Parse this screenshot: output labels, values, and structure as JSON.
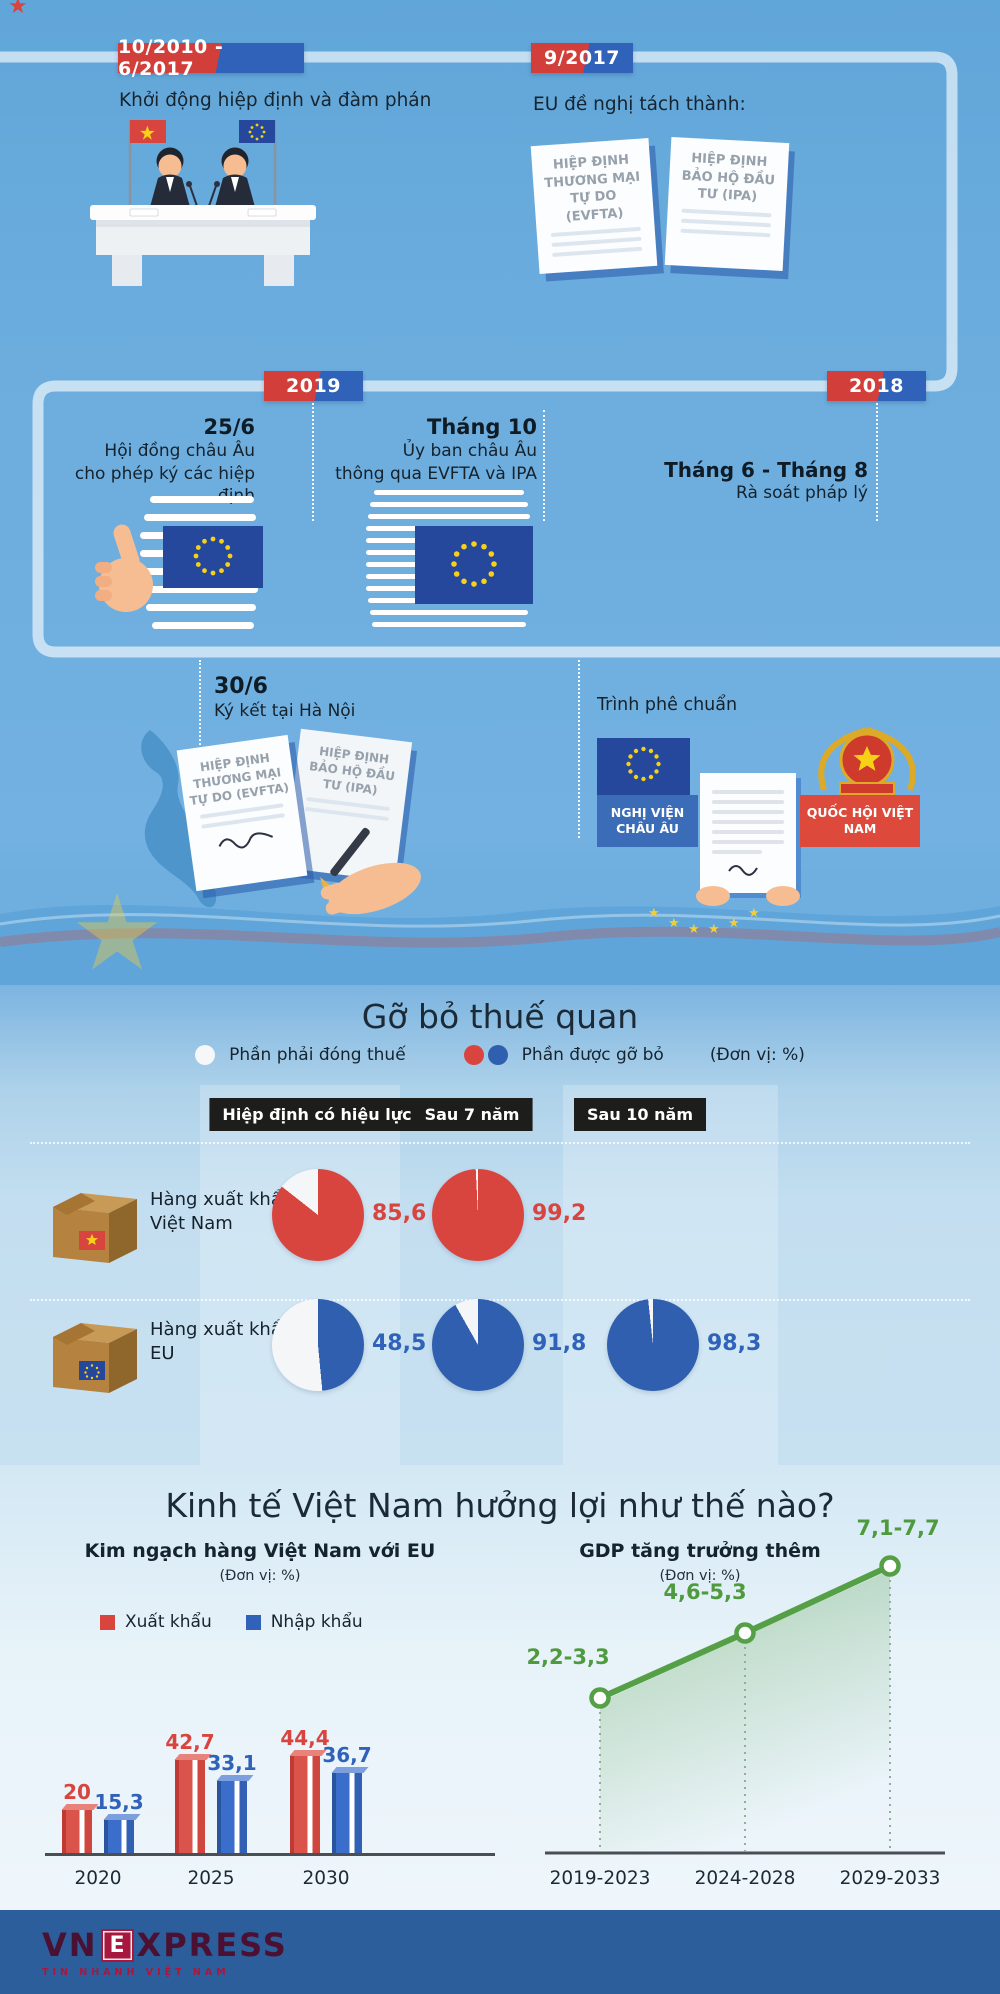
{
  "colors": {
    "red": "#d8453e",
    "blue": "#2f62b8",
    "eu_navy": "#26489c",
    "star_yellow": "#f7d117",
    "green": "#55a046",
    "label_box": "#1d1d1b",
    "footer_bg": "#2c5e9c",
    "logo_maroon": "#4b1133",
    "logo_crimson": "#a8173e"
  },
  "timeline": {
    "period1": {
      "badge": "10/2010 - 6/2017",
      "text": "Khởi động hiệp định và đàm phán"
    },
    "period2": {
      "badge": "9/2017",
      "text": "EU đề nghị tách thành:",
      "doc1": "HIỆP ĐỊNH THƯƠNG MẠI TỰ DO (EVFTA)",
      "doc2": "HIỆP ĐỊNH BẢO HỘ ĐẦU TƯ (IPA)"
    },
    "badge2019": "2019",
    "badge2018": "2018",
    "event_25_6": {
      "date": "25/6",
      "line1": "Hội đồng châu Âu",
      "line2": "cho phép ký các hiệp định"
    },
    "event_thang10": {
      "date": "Tháng 10",
      "line1": "Ủy ban châu Âu",
      "line2": "thông qua EVFTA và IPA"
    },
    "event_thang6_8": {
      "date": "Tháng 6 - Tháng 8",
      "line1": "Rà soát pháp lý"
    },
    "event_30_6": {
      "date": "30/6",
      "line1": "Ký kết tại Hà Nội"
    },
    "event_ratify": {
      "title": "Trình phê chuẩn",
      "eu_label": "NGHỊ VIỆN CHÂU ÂU",
      "vn_label": "QUỐC HỘI VIỆT NAM"
    }
  },
  "tariff": {
    "title": "Gỡ bỏ thuế quan",
    "legend": {
      "white": "Phần phải đóng thuế",
      "colored": "Phần được gỡ bỏ",
      "unit": "(Đơn vị: %)"
    },
    "columns": [
      "Hiệp định có hiệu lực",
      "Sau 7 năm",
      "Sau 10 năm"
    ],
    "rows": [
      {
        "label_line1": "Hàng xuất khẩu",
        "label_line2": "Việt Nam",
        "values": [
          "85,6",
          "99,2",
          ""
        ]
      },
      {
        "label_line1": "Hàng xuất khẩu",
        "label_line2": "EU",
        "values": [
          "48,5",
          "91,8",
          "98,3"
        ]
      }
    ]
  },
  "economy": {
    "title": "Kinh tế Việt Nam hưởng lợi như thế nào?",
    "trade": {
      "subtitle": "Kim ngạch hàng Việt Nam với EU",
      "unit": "(Đơn vị: %)",
      "legend": [
        "Xuất khẩu",
        "Nhập khẩu"
      ],
      "categories": [
        "2020",
        "2025",
        "2030"
      ]
    },
    "gdp": {
      "subtitle": "GDP tăng trưởng thêm",
      "unit": "(Đơn vị: %)",
      "labels": [
        "2,2-3,3",
        "4,6-5,3",
        "7,1-7,7"
      ],
      "categories": [
        "2019-2023",
        "2024-2028",
        "2029-2033"
      ]
    }
  },
  "footer": {
    "logo_prefix": "VN",
    "logo_e": "E",
    "logo_suffix": "XPRESS",
    "tagline": "TIN NHANH VIỆT NAM"
  },
  "chart_data": [
    {
      "type": "pie",
      "title": "Gỡ bỏ thuế quan",
      "unit": "%",
      "legend": {
        "white_slice": "Phần phải đóng thuế",
        "colored_slice": "Phần được gỡ bỏ"
      },
      "columns": [
        "Hiệp định có hiệu lực",
        "Sau 7 năm",
        "Sau 10 năm"
      ],
      "rows": [
        {
          "name": "Hàng xuất khẩu Việt Nam",
          "color": "#d8453e",
          "values": [
            85.6,
            99.2,
            null
          ]
        },
        {
          "name": "Hàng xuất khẩu EU",
          "color": "#2f5fae",
          "values": [
            48.5,
            91.8,
            98.3
          ]
        }
      ]
    },
    {
      "type": "bar",
      "title": "Kim ngạch hàng Việt Nam với EU",
      "unit": "%",
      "categories": [
        "2020",
        "2025",
        "2030"
      ],
      "series": [
        {
          "name": "Xuất khẩu",
          "color": "#d8453e",
          "values": [
            20,
            42.7,
            44.4
          ]
        },
        {
          "name": "Nhập khẩu",
          "color": "#2f62b8",
          "values": [
            15.3,
            33.1,
            36.7
          ]
        }
      ],
      "value_labels": [
        [
          "20",
          "42,7",
          "44,4"
        ],
        [
          "15,3",
          "33,1",
          "36,7"
        ]
      ],
      "ylim": [
        0,
        50
      ],
      "grid": false,
      "legend_position": "top-left"
    },
    {
      "type": "line",
      "title": "GDP tăng trưởng thêm",
      "unit": "%",
      "categories": [
        "2019-2023",
        "2024-2028",
        "2029-2033"
      ],
      "values": [
        [
          2.2,
          3.3
        ],
        [
          4.6,
          5.3
        ],
        [
          7.1,
          7.7
        ]
      ],
      "labels": [
        "2,2-3,3",
        "4,6-5,3",
        "7,1-7,7"
      ],
      "color": "#55a046",
      "marker": "open-circle"
    }
  ]
}
